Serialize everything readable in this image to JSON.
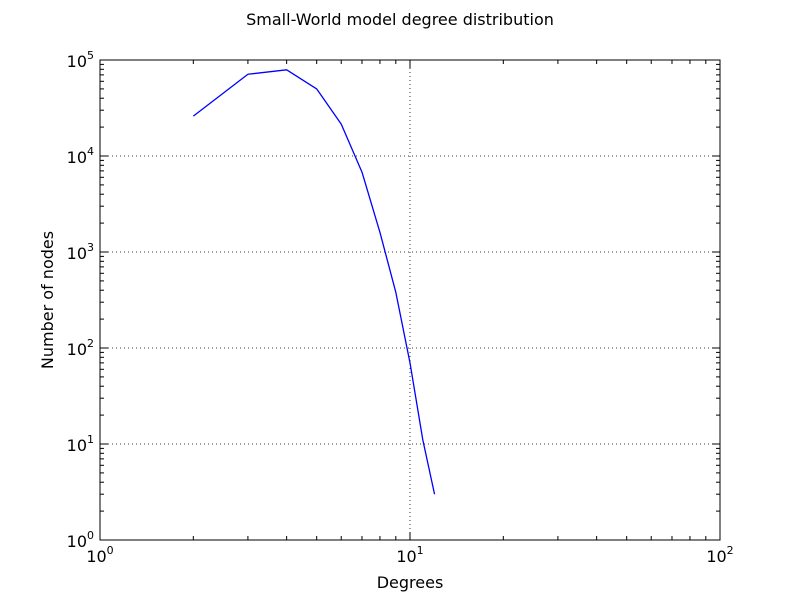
{
  "chart_data": {
    "type": "line",
    "title": "Small-World model degree distribution",
    "xlabel": "Degrees",
    "ylabel": "Number of nodes",
    "xscale": "log",
    "yscale": "log",
    "xlim": [
      1,
      100
    ],
    "ylim": [
      1,
      100000
    ],
    "grid": true,
    "x_ticks": [
      {
        "value": 1,
        "base": "10",
        "exp": "0"
      },
      {
        "value": 10,
        "base": "10",
        "exp": "1"
      },
      {
        "value": 100,
        "base": "10",
        "exp": "2"
      }
    ],
    "y_ticks": [
      {
        "value": 1,
        "base": "10",
        "exp": "0"
      },
      {
        "value": 10,
        "base": "10",
        "exp": "1"
      },
      {
        "value": 100,
        "base": "10",
        "exp": "2"
      },
      {
        "value": 1000,
        "base": "10",
        "exp": "3"
      },
      {
        "value": 10000,
        "base": "10",
        "exp": "4"
      },
      {
        "value": 100000,
        "base": "10",
        "exp": "5"
      }
    ],
    "series": [
      {
        "color": "#0000ff",
        "x": [
          2,
          3,
          4,
          5,
          6,
          7,
          8,
          9,
          10,
          11,
          12
        ],
        "y": [
          26000,
          71000,
          79000,
          50000,
          21500,
          6800,
          1600,
          380,
          70,
          11,
          3
        ]
      }
    ]
  }
}
